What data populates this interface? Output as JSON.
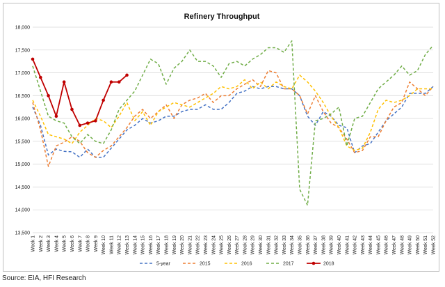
{
  "chart_data": {
    "type": "line",
    "title": "Refinery Throughput",
    "xlabel": "",
    "ylabel": "",
    "ylim": [
      13500,
      18000
    ],
    "yticks": [
      13500,
      14000,
      14500,
      15000,
      15500,
      16000,
      16500,
      17000,
      17500,
      18000
    ],
    "ytick_labels": [
      "13,500",
      "14,000",
      "14,500",
      "15,000",
      "15,500",
      "16,000",
      "16,500",
      "17,000",
      "17,500",
      "18,000"
    ],
    "grid": "horizontal",
    "legend_position": "bottom",
    "categories": [
      "Week 1",
      "Week 2",
      "Week 3",
      "Week 4",
      "Week 5",
      "Week 6",
      "Week 7",
      "Week 8",
      "Week 9",
      "Week 10",
      "Week 11",
      "Week 12",
      "Week 13",
      "Week 14",
      "Week 15",
      "Week 16",
      "Week 17",
      "Week 18",
      "Week 19",
      "Week 20",
      "Week 21",
      "Week 22",
      "Week 23",
      "Week 24",
      "Week 25",
      "Week 26",
      "Week 27",
      "Week 28",
      "Week 29",
      "Week 30",
      "Week 31",
      "Week 32",
      "Week 33",
      "Week 34",
      "Week 35",
      "Week 36",
      "Week 37",
      "Week 38",
      "Week 39",
      "Week 40",
      "Week 41",
      "Week 42",
      "Week 43",
      "Week 44",
      "Week 45",
      "Week 46",
      "Week 47",
      "Week 48",
      "Week 49",
      "Week 50",
      "Week 51",
      "Week 52"
    ],
    "series": [
      {
        "name": "5-year",
        "color": "#4472c4",
        "style": "dashed",
        "values": [
          16250,
          15850,
          15200,
          15330,
          15280,
          15270,
          15150,
          15330,
          15150,
          15150,
          15350,
          15550,
          15750,
          15850,
          16000,
          15900,
          15950,
          16050,
          16050,
          16150,
          16200,
          16200,
          16300,
          16200,
          16200,
          16350,
          16550,
          16600,
          16700,
          16650,
          16700,
          16700,
          16650,
          16650,
          16500,
          16050,
          15850,
          16150,
          16050,
          15850,
          15800,
          15250,
          15400,
          15450,
          15700,
          15950,
          16100,
          16250,
          16550,
          16550,
          16550,
          16700
        ]
      },
      {
        "name": "2015",
        "color": "#ed7d31",
        "style": "dashed",
        "values": [
          16350,
          15750,
          14950,
          15400,
          15480,
          15600,
          15500,
          15250,
          15150,
          15300,
          15400,
          15600,
          15800,
          16050,
          16200,
          16000,
          16150,
          16300,
          16000,
          16300,
          16400,
          16450,
          16550,
          16350,
          16500,
          16500,
          16650,
          16750,
          16850,
          16700,
          17050,
          17000,
          16650,
          16650,
          16500,
          16100,
          16500,
          16150,
          15900,
          15800,
          15550,
          15250,
          15300,
          15600,
          15600,
          15950,
          16250,
          16350,
          16800,
          16650,
          16500,
          16700
        ]
      },
      {
        "name": "2016",
        "color": "#ffc000",
        "style": "dashed",
        "values": [
          16400,
          16050,
          15650,
          15600,
          15550,
          15450,
          15700,
          15850,
          16000,
          15950,
          15800,
          16050,
          16350,
          15950,
          16150,
          15850,
          16150,
          16250,
          16350,
          16300,
          16250,
          16350,
          16450,
          16550,
          16700,
          16650,
          16700,
          16850,
          16650,
          16800,
          16650,
          16800,
          16700,
          16650,
          16950,
          16800,
          16600,
          16350,
          16050,
          15800,
          15400,
          15300,
          15350,
          15700,
          16200,
          16400,
          16350,
          16400,
          16500,
          16650,
          16650,
          16650
        ]
      },
      {
        "name": "2017",
        "color": "#70ad47",
        "style": "dashed",
        "values": [
          17150,
          16600,
          16050,
          15950,
          15900,
          15600,
          15450,
          15650,
          15500,
          15450,
          15750,
          16200,
          16400,
          16600,
          16950,
          17300,
          17200,
          16750,
          17100,
          17250,
          17500,
          17250,
          17250,
          17150,
          16900,
          17200,
          17250,
          17150,
          17300,
          17400,
          17550,
          17550,
          17450,
          17700,
          14450,
          14100,
          15950,
          16000,
          16100,
          16250,
          15400,
          16000,
          16050,
          16350,
          16650,
          16800,
          16950,
          17150,
          16950,
          17050,
          17400,
          17600
        ]
      },
      {
        "name": "2018",
        "color": "#c00000",
        "style": "solid",
        "values": [
          17300,
          16900,
          16500,
          16050,
          16800,
          16200,
          15850,
          15900,
          15950,
          16400,
          16800,
          16800,
          16950,
          null,
          null,
          null,
          null,
          null,
          null,
          null,
          null,
          null,
          null,
          null,
          null,
          null,
          null,
          null,
          null,
          null,
          null,
          null,
          null,
          null,
          null,
          null,
          null,
          null,
          null,
          null,
          null,
          null,
          null,
          null,
          null,
          null,
          null,
          null,
          null,
          null,
          null,
          null
        ]
      }
    ]
  },
  "source_text": "Source: EIA, HFI Research"
}
